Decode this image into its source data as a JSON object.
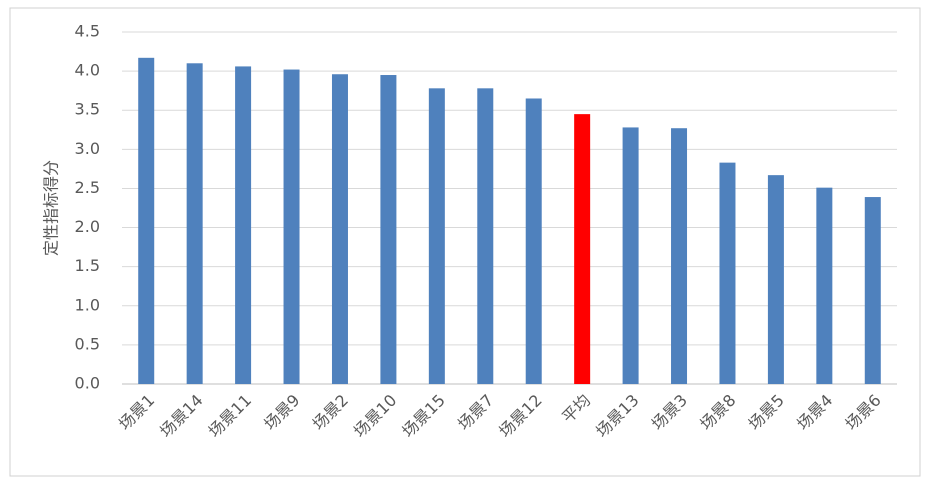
{
  "chart_data": {
    "type": "bar",
    "y_label": "定性指标得分",
    "categories": [
      "场景1",
      "场景14",
      "场景11",
      "场景9",
      "场景2",
      "场景10",
      "场景15",
      "场景7",
      "场景12",
      "平均",
      "场景13",
      "场景3",
      "场景8",
      "场景5",
      "场景4",
      "场景6"
    ],
    "values": [
      4.17,
      4.1,
      4.06,
      4.02,
      3.96,
      3.95,
      3.78,
      3.78,
      3.65,
      3.45,
      3.28,
      3.27,
      2.83,
      2.67,
      2.51,
      2.39
    ],
    "colors": [
      "#4f81bd",
      "#4f81bd",
      "#4f81bd",
      "#4f81bd",
      "#4f81bd",
      "#4f81bd",
      "#4f81bd",
      "#4f81bd",
      "#4f81bd",
      "#ff0000",
      "#4f81bd",
      "#4f81bd",
      "#4f81bd",
      "#4f81bd",
      "#4f81bd",
      "#4f81bd"
    ],
    "ylim": [
      0,
      4.5
    ],
    "yticks": [
      {
        "value": 0,
        "label": "0.0"
      },
      0.5,
      {
        "value": 1,
        "label": "1.0"
      },
      1.5,
      {
        "value": 2,
        "label": "2.0"
      },
      2.5,
      {
        "value": 3,
        "label": "3.0"
      },
      3.5,
      {
        "value": 4,
        "label": "4.0"
      },
      4.5
    ],
    "grid": true
  }
}
